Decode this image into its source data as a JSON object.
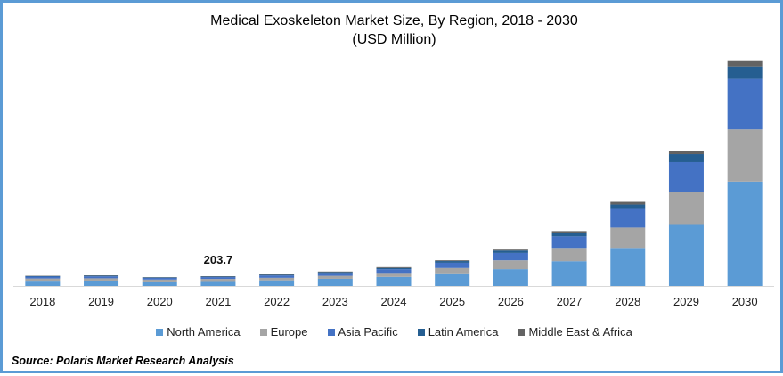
{
  "chart_data": {
    "type": "bar",
    "stacked": true,
    "title": "Medical Exoskeleton Market Size, By Region, 2018 - 2030",
    "subtitle": "(USD Million)",
    "xlabel": "",
    "ylabel": "",
    "grid": false,
    "legend_position": "bottom",
    "ylim": [
      0,
      4900
    ],
    "categories": [
      "2018",
      "2019",
      "2020",
      "2021",
      "2022",
      "2023",
      "2024",
      "2025",
      "2026",
      "2027",
      "2028",
      "2029",
      "2030"
    ],
    "series": [
      {
        "name": "North America",
        "color": "#5B9BD5",
        "values": [
          110,
          112,
          94,
          103,
          118,
          150,
          190,
          265,
          352,
          518,
          796,
          1295,
          2183
        ]
      },
      {
        "name": "Europe",
        "color": "#A5A5A5",
        "values": [
          46,
          48,
          40,
          44,
          52,
          62,
          83,
          111,
          185,
          278,
          426,
          666,
          1092
        ]
      },
      {
        "name": "Asia Pacific",
        "color": "#4472C4",
        "values": [
          40,
          42,
          35,
          38,
          50,
          60,
          78,
          110,
          154,
          241,
          389,
          629,
          1055
        ]
      },
      {
        "name": "Latin America",
        "color": "#255E91",
        "values": [
          11,
          12,
          10,
          11,
          14,
          18,
          25,
          35,
          50,
          80,
          93,
          167,
          259
        ]
      },
      {
        "name": "Middle East & Africa",
        "color": "#636363",
        "values": [
          7,
          8,
          6,
          7.7,
          12,
          12,
          18,
          16,
          19,
          31,
          56,
          74,
          130
        ]
      }
    ],
    "annotations": [
      {
        "category": "2021",
        "text": "203.7"
      }
    ]
  },
  "source": "Source: Polaris  Market Research Analysis",
  "frame_color": "#5B9BD5"
}
